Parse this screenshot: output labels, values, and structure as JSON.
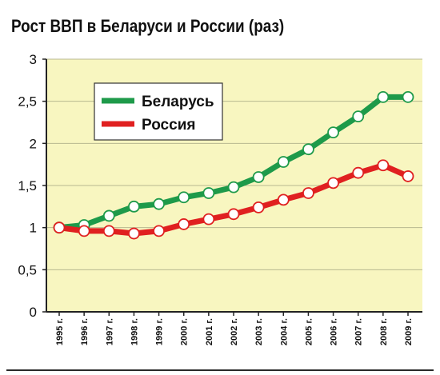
{
  "chart_data": {
    "type": "line",
    "title": "Рост ВВП в Беларуси и России (раз)",
    "categories": [
      "1995 г.",
      "1996 г.",
      "1997 г.",
      "1998 г.",
      "1999 г.",
      "2000 г.",
      "2001 г.",
      "2002 г.",
      "2003 г.",
      "2004 г.",
      "2005 г.",
      "2006 г.",
      "2007 г.",
      "2008 г.",
      "2009 г."
    ],
    "series": [
      {
        "name": "Беларусь",
        "color": "#1e9a4a",
        "values": [
          1.0,
          1.03,
          1.14,
          1.25,
          1.28,
          1.36,
          1.41,
          1.48,
          1.6,
          1.78,
          1.93,
          2.13,
          2.32,
          2.55,
          2.55
        ]
      },
      {
        "name": "Россия",
        "color": "#e02020",
        "values": [
          1.0,
          0.96,
          0.96,
          0.93,
          0.96,
          1.04,
          1.1,
          1.16,
          1.24,
          1.33,
          1.41,
          1.53,
          1.65,
          1.74,
          1.61
        ]
      }
    ],
    "yticks": [
      "0",
      "0,5",
      "1",
      "1,5",
      "2",
      "2,5",
      "3"
    ],
    "ylim": [
      0,
      3
    ],
    "grid": true,
    "legend": "top-left",
    "background_color": "#f8f6c0"
  }
}
